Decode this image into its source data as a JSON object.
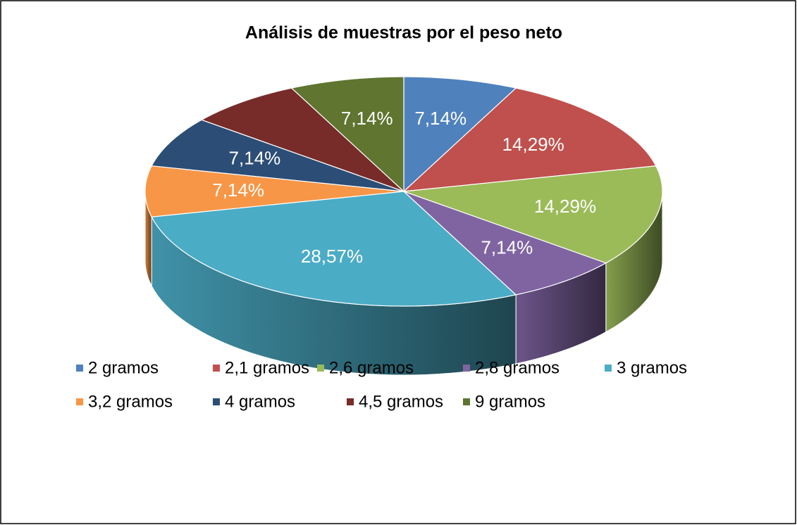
{
  "chart_data": {
    "type": "pie3d",
    "title": "Análisis de muestras por el peso neto",
    "categories": [
      "2 gramos",
      "2,1 gramos",
      "2,6 gramos",
      "2,8 gramos",
      "3 gramos",
      "3,2 gramos",
      "4 gramos",
      "4,5 gramos",
      "9 gramos"
    ],
    "values": [
      7.14,
      14.29,
      14.29,
      7.14,
      28.57,
      7.14,
      7.14,
      7.14,
      7.14
    ],
    "value_labels": [
      "7,14%",
      "14,29%",
      "14,29%",
      "7,14%",
      "28,57%",
      "7,14%",
      "7,14%",
      null,
      "7,14%"
    ],
    "colors": [
      "#4f81bd",
      "#c0504d",
      "#9bbb59",
      "#8064a2",
      "#4bacc6",
      "#f79646",
      "#2c4d75",
      "#772c2a",
      "#5f7530"
    ],
    "legend": "bottom"
  }
}
